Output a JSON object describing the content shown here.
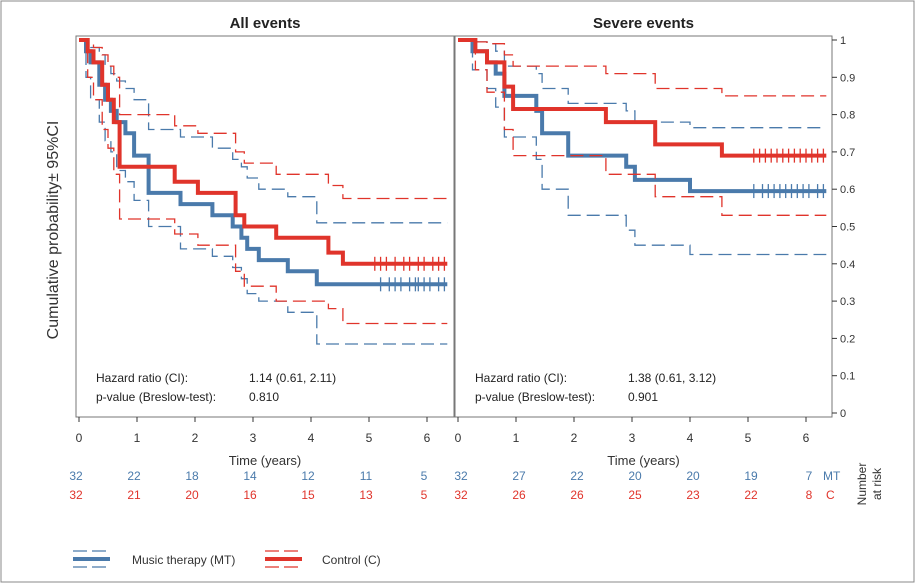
{
  "colors": {
    "mt": "#4a7aab",
    "c": "#e0342b",
    "axis": "#333333",
    "frame": "#777777"
  },
  "y_axis": {
    "label": "Cumulative probability± 95%CI",
    "ticks": [
      0,
      0.1,
      0.2,
      0.3,
      0.4,
      0.5,
      0.6,
      0.7,
      0.8,
      0.9,
      1
    ]
  },
  "x_axis": {
    "label": "Time (years)",
    "ticks": [
      0,
      1,
      2,
      3,
      4,
      5,
      6
    ]
  },
  "risk_table": {
    "header": [
      "Number",
      "at risk"
    ],
    "mt_label": "MT",
    "c_label": "C"
  },
  "legend": {
    "mt_label": "Music therapy (MT)",
    "c_label": "Control (C)"
  },
  "chart_data": [
    {
      "type": "line",
      "title": "All events",
      "xlim": [
        0,
        6.35
      ],
      "ylim": [
        0,
        1
      ],
      "series": [
        {
          "name": "Music therapy (MT)",
          "x": [
            0,
            0.12,
            0.2,
            0.35,
            0.45,
            0.55,
            0.65,
            0.8,
            0.95,
            1.2,
            1.75,
            2.3,
            2.65,
            2.8,
            2.9,
            3.1,
            3.6,
            4.1,
            6.3
          ],
          "y": [
            1,
            0.97,
            0.94,
            0.88,
            0.84,
            0.81,
            0.78,
            0.75,
            0.69,
            0.59,
            0.56,
            0.53,
            0.5,
            0.47,
            0.44,
            0.41,
            0.38,
            0.345,
            0.345
          ],
          "lower": [
            1,
            0.9,
            0.84,
            0.78,
            0.73,
            0.7,
            0.65,
            0.62,
            0.57,
            0.5,
            0.44,
            0.42,
            0.39,
            0.36,
            0.32,
            0.3,
            0.27,
            0.185,
            0.185
          ],
          "upper": [
            1,
            0.99,
            0.98,
            0.96,
            0.93,
            0.91,
            0.89,
            0.87,
            0.84,
            0.76,
            0.74,
            0.71,
            0.68,
            0.66,
            0.63,
            0.6,
            0.58,
            0.51,
            0.51
          ],
          "censor": [
            5.2,
            5.35,
            5.45,
            5.55,
            5.7,
            5.8,
            5.85,
            5.95,
            6.05,
            6.2,
            6.3
          ]
        },
        {
          "name": "Control (C)",
          "x": [
            0,
            0.15,
            0.25,
            0.4,
            0.5,
            0.6,
            0.7,
            1.65,
            2.05,
            2.7,
            2.85,
            3.4,
            4.3,
            4.55,
            6.3
          ],
          "y": [
            1,
            0.97,
            0.94,
            0.88,
            0.84,
            0.78,
            0.66,
            0.62,
            0.59,
            0.53,
            0.5,
            0.47,
            0.43,
            0.4,
            0.4
          ],
          "lower": [
            1,
            0.9,
            0.84,
            0.76,
            0.71,
            0.64,
            0.52,
            0.48,
            0.45,
            0.38,
            0.34,
            0.3,
            0.28,
            0.24,
            0.24
          ],
          "upper": [
            1,
            0.99,
            0.98,
            0.96,
            0.93,
            0.9,
            0.8,
            0.77,
            0.75,
            0.7,
            0.67,
            0.64,
            0.61,
            0.575,
            0.575
          ],
          "censor": [
            5.1,
            5.2,
            5.3,
            5.45,
            5.6,
            5.7,
            5.85,
            5.95,
            6.1,
            6.2,
            6.3
          ]
        }
      ],
      "annotations": {
        "hr_label": "Hazard ratio (CI):",
        "hr_value": "1.14 (0.61, 2.11)",
        "p_label": "p-value (Breslow-test):",
        "p_value": "0.810"
      },
      "at_risk": {
        "mt": [
          "32",
          "22",
          "18",
          "14",
          "12",
          "11",
          "5"
        ],
        "c": [
          "32",
          "21",
          "20",
          "16",
          "15",
          "13",
          "5"
        ]
      }
    },
    {
      "type": "line",
      "title": "Severe events",
      "xlim": [
        0,
        6.35
      ],
      "ylim": [
        0,
        1
      ],
      "series": [
        {
          "name": "Music therapy (MT)",
          "x": [
            0,
            0.25,
            0.5,
            0.65,
            0.8,
            1.35,
            1.45,
            1.9,
            2.9,
            3.05,
            4.0,
            6.3
          ],
          "y": [
            1,
            0.97,
            0.94,
            0.91,
            0.85,
            0.81,
            0.75,
            0.69,
            0.66,
            0.625,
            0.595,
            0.595
          ],
          "lower": [
            1,
            0.92,
            0.87,
            0.82,
            0.74,
            0.68,
            0.6,
            0.53,
            0.49,
            0.45,
            0.425,
            0.425
          ],
          "upper": [
            1,
            0.995,
            0.99,
            0.97,
            0.93,
            0.91,
            0.87,
            0.83,
            0.81,
            0.78,
            0.765,
            0.765
          ],
          "censor": [
            5.1,
            5.25,
            5.35,
            5.45,
            5.55,
            5.65,
            5.75,
            5.85,
            5.95,
            6.05,
            6.2,
            6.3
          ]
        },
        {
          "name": "Control (C)",
          "x": [
            0,
            0.3,
            0.5,
            0.8,
            0.95,
            2.55,
            3.4,
            4.55,
            6.3
          ],
          "y": [
            1,
            0.97,
            0.94,
            0.875,
            0.815,
            0.78,
            0.72,
            0.69,
            0.69
          ],
          "lower": [
            1,
            0.92,
            0.86,
            0.76,
            0.69,
            0.64,
            0.58,
            0.53,
            0.53
          ],
          "upper": [
            1,
            0.995,
            0.99,
            0.96,
            0.93,
            0.91,
            0.87,
            0.85,
            0.85
          ],
          "censor": [
            5.1,
            5.2,
            5.3,
            5.4,
            5.5,
            5.6,
            5.7,
            5.8,
            5.9,
            6.0,
            6.1,
            6.2,
            6.3
          ]
        }
      ],
      "annotations": {
        "hr_label": "Hazard ratio (CI):",
        "hr_value": "1.38 (0.61, 3.12)",
        "p_label": "p-value (Breslow-test):",
        "p_value": "0.901"
      },
      "at_risk": {
        "mt": [
          "32",
          "27",
          "22",
          "20",
          "20",
          "19",
          "7"
        ],
        "c": [
          "32",
          "26",
          "26",
          "25",
          "23",
          "22",
          "8"
        ]
      }
    }
  ]
}
